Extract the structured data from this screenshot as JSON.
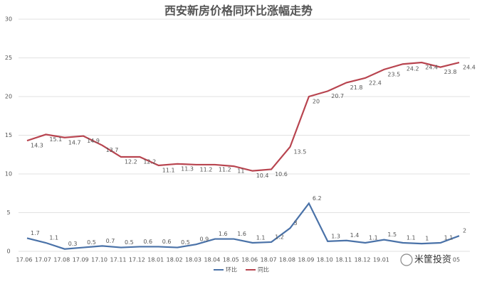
{
  "chart_data": {
    "type": "line",
    "title": "西安新房价格同环比涨幅走势",
    "categories": [
      "17.06",
      "17.07",
      "17.08",
      "17.09",
      "17.10",
      "17.11",
      "17.12",
      "18.01",
      "18.02",
      "18.03",
      "18.04",
      "18.05",
      "18.06",
      "18.07",
      "18.08",
      "18.09",
      "18.10",
      "18.11",
      "18.12",
      "19.01",
      null,
      null,
      null,
      "05"
    ],
    "series": [
      {
        "name": "环比",
        "color": "#4a72a8",
        "values": [
          1.7,
          1.1,
          0.3,
          0.5,
          0.7,
          0.5,
          0.6,
          0.6,
          0.5,
          0.9,
          1.6,
          1.6,
          1.1,
          1.2,
          3,
          6.2,
          1.3,
          1.4,
          1.1,
          1.5,
          1.1,
          1,
          1.1,
          2
        ]
      },
      {
        "name": "同比",
        "color": "#b8444f",
        "values": [
          14.3,
          15.1,
          14.7,
          14.9,
          13.7,
          12.2,
          12.2,
          11.1,
          11.3,
          11.2,
          11.2,
          11,
          10.4,
          10.6,
          13.5,
          20,
          20.7,
          21.8,
          22.4,
          23.5,
          24.2,
          24.4,
          23.8,
          24.4
        ]
      }
    ],
    "ylim": [
      0,
      30
    ],
    "yticks": [
      0,
      5,
      10,
      15,
      20,
      25,
      30
    ],
    "grid": true,
    "legend": "bottom",
    "watermark": "米筐投资"
  }
}
